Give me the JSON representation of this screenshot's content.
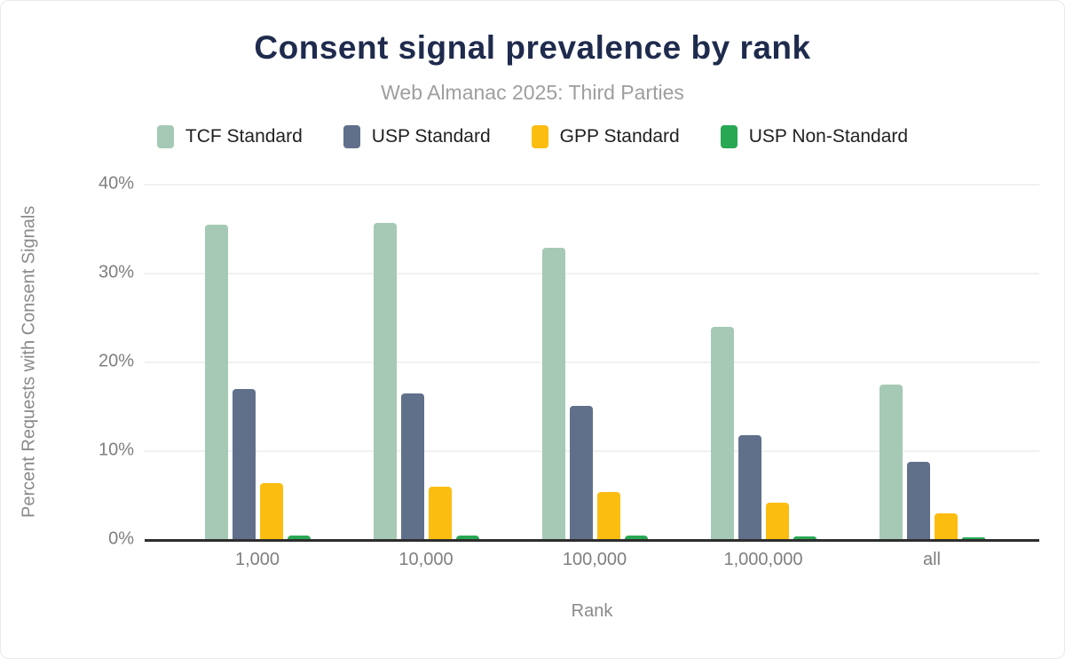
{
  "page": {
    "title": "Consent signal prevalence by rank",
    "subtitle": "Web Almanac 2025: Third Parties"
  },
  "chart_data": {
    "type": "bar",
    "title": "Consent signal prevalence by rank",
    "subtitle": "Web Almanac 2025: Third Parties",
    "xlabel": "Rank",
    "ylabel": "Percent Requests with Consent Signals",
    "categories": [
      "1,000",
      "10,000",
      "100,000",
      "1,000,000",
      "all"
    ],
    "series": [
      {
        "name": "TCF Standard",
        "color": "#a5c9b5",
        "values": [
          35.4,
          35.6,
          32.8,
          23.9,
          17.4
        ]
      },
      {
        "name": "USP Standard",
        "color": "#60708b",
        "values": [
          16.9,
          16.4,
          15.0,
          11.7,
          8.7
        ]
      },
      {
        "name": "GPP Standard",
        "color": "#fcbd11",
        "values": [
          6.3,
          5.9,
          5.3,
          4.1,
          2.9
        ]
      },
      {
        "name": "USP Non-Standard",
        "color": "#28a853",
        "values": [
          0.4,
          0.4,
          0.4,
          0.3,
          0.2
        ]
      }
    ],
    "ylim": [
      0,
      40
    ],
    "yticks": [
      "40%",
      "30%",
      "20%",
      "10%",
      "0%"
    ],
    "grid": true,
    "legend_position": "top"
  },
  "colors": {
    "title": "#1f2b4d",
    "subtitle": "#9e9e9e",
    "axis_text": "#8a8a8a",
    "legend_text": "#212121",
    "gridline": "#f1f1f1",
    "baseline": "#2e2e2e",
    "background": "#ffffff"
  }
}
